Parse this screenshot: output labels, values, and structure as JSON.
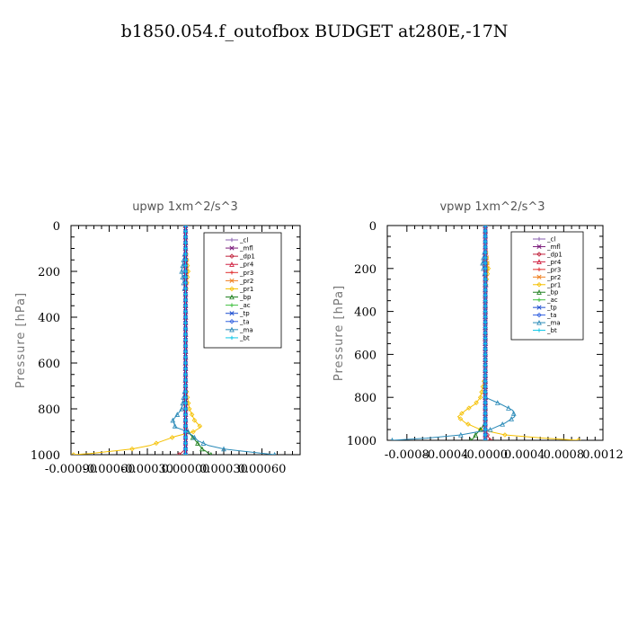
{
  "figure": {
    "title": "b1850.054.f_outofbox  BUDGET at280E,-17N"
  },
  "chart_data": [
    {
      "type": "line",
      "title": "upwp   1xm^2/s^3",
      "ylabel": "Pressure  [hPa]",
      "xlabel": "",
      "xlim": [
        -0.0009,
        0.0009
      ],
      "ylim": [
        1000,
        0
      ],
      "y_ticks": [
        0,
        200,
        400,
        600,
        800,
        1000
      ],
      "x_ticks": [
        -0.0009,
        -0.0006,
        -0.0003,
        0.0,
        0.0003,
        0.0006
      ],
      "x_tick_labels": [
        "-0.00090",
        "-0.00060",
        "-0.00030",
        "0.00000",
        "0.00030",
        "0.00060"
      ],
      "legend_position": "top-right",
      "pressure": [
        0,
        100,
        200,
        300,
        400,
        500,
        600,
        700,
        800,
        850,
        880,
        900,
        920,
        940,
        960,
        975,
        985,
        995,
        1000
      ],
      "series": [
        {
          "name": "_cl",
          "color": "#8a5fb0",
          "values": [
            0,
            0,
            0,
            0,
            0,
            0,
            0,
            0,
            0,
            0,
            0,
            0,
            0,
            0,
            0,
            0,
            0,
            0,
            0
          ]
        },
        {
          "name": "_mfl",
          "color": "#7a1a7a",
          "values": [
            0,
            0,
            0,
            0,
            0,
            0,
            0,
            0,
            0,
            0,
            0,
            0,
            0,
            0,
            0,
            0,
            0,
            0,
            0
          ]
        },
        {
          "name": "_dp1",
          "color": "#c0203a",
          "values": [
            0,
            0,
            0,
            0,
            0,
            0,
            0,
            0,
            0,
            0,
            0,
            0,
            0,
            0,
            0,
            0,
            -2e-05,
            -4e-05,
            -5e-05
          ]
        },
        {
          "name": "_pr4",
          "color": "#d02040",
          "values": [
            0,
            0,
            0,
            0,
            0,
            0,
            0,
            0,
            0,
            0,
            0,
            0,
            0,
            0,
            0,
            0,
            0,
            0,
            0
          ]
        },
        {
          "name": "_pr3",
          "color": "#e03030",
          "values": [
            0,
            0,
            0,
            0,
            0,
            0,
            0,
            0,
            0,
            0,
            0,
            0,
            0,
            0,
            0,
            0,
            0,
            0,
            0
          ]
        },
        {
          "name": "_pr2",
          "color": "#f08020",
          "values": [
            0,
            0,
            1e-05,
            0,
            0,
            0,
            0,
            0,
            0,
            0,
            0,
            0,
            0,
            0,
            0,
            0,
            0,
            0,
            0
          ]
        },
        {
          "name": "_pr1",
          "color": "#f5c000",
          "values": [
            0,
            0,
            2e-05,
            0,
            0,
            0,
            0,
            0,
            3e-05,
            7e-05,
            0.00012,
            6e-05,
            -8e-05,
            -0.00018,
            -0.00028,
            -0.00042,
            -0.00058,
            -0.00075,
            -0.00088
          ]
        },
        {
          "name": "_bp",
          "color": "#208020",
          "values": [
            0,
            0,
            0,
            0,
            0,
            0,
            0,
            0,
            0,
            0,
            0,
            2e-05,
            5e-05,
            8e-05,
            0.00011,
            0.00013,
            0.00016,
            0.00018,
            0.0002
          ]
        },
        {
          "name": "_ac",
          "color": "#40c040",
          "values": [
            0,
            0,
            0,
            0,
            0,
            0,
            0,
            0,
            0,
            0,
            0,
            0,
            0,
            0,
            0,
            0,
            0,
            0,
            0
          ]
        },
        {
          "name": "_tp",
          "color": "#2050d0",
          "values": [
            0,
            0,
            0,
            0,
            0,
            0,
            0,
            0,
            0,
            0,
            0,
            0,
            0,
            0,
            0,
            0,
            0,
            0,
            0
          ]
        },
        {
          "name": "_ta",
          "color": "#3060e0",
          "values": [
            0,
            0,
            0,
            0,
            0,
            0,
            0,
            0,
            0,
            0,
            0,
            0,
            0,
            0,
            0,
            0,
            0,
            0,
            0
          ]
        },
        {
          "name": "_ma",
          "color": "#2a8ab8",
          "values": [
            0,
            0,
            -3e-05,
            0,
            0,
            0,
            0,
            0,
            -3e-05,
            -0.0001,
            -8e-05,
            2e-05,
            6e-05,
            0.0001,
            0.00018,
            0.0003,
            0.00045,
            0.00062,
            0.0007
          ]
        },
        {
          "name": "_bt",
          "color": "#10c8e8",
          "values": [
            0,
            0,
            0,
            0,
            0,
            0,
            0,
            0,
            0,
            0,
            0,
            0,
            0,
            0,
            0,
            0,
            0,
            0,
            0
          ]
        }
      ]
    },
    {
      "type": "line",
      "title": "vpwp   1xm^2/s^3",
      "ylabel": "Pressure  [hPa]",
      "xlabel": "",
      "xlim": [
        -0.001,
        0.0012
      ],
      "ylim": [
        1000,
        0
      ],
      "y_ticks": [
        0,
        200,
        400,
        600,
        800,
        1000
      ],
      "x_ticks": [
        -0.0008,
        -0.0004,
        0.0,
        0.0004,
        0.0008,
        0.0012
      ],
      "x_tick_labels": [
        "-0.0008",
        "-0.0004",
        "-0.0000",
        "0.0004",
        "0.0008",
        "0.0012"
      ],
      "legend_position": "top-right",
      "pressure": [
        0,
        100,
        180,
        200,
        260,
        300,
        400,
        500,
        600,
        700,
        800,
        830,
        860,
        890,
        920,
        950,
        975,
        990,
        1000
      ],
      "series": [
        {
          "name": "_cl",
          "color": "#8a5fb0",
          "values": [
            0,
            0,
            0,
            0,
            0,
            0,
            0,
            0,
            0,
            0,
            0,
            0,
            0,
            0,
            0,
            0,
            0,
            0,
            0
          ]
        },
        {
          "name": "_mfl",
          "color": "#7a1a7a",
          "values": [
            0,
            0,
            0,
            0,
            0,
            0,
            0,
            0,
            0,
            0,
            0,
            0,
            0,
            0,
            0,
            0,
            0,
            0,
            0
          ]
        },
        {
          "name": "_dp1",
          "color": "#c0203a",
          "values": [
            0,
            0,
            0,
            0,
            0,
            0,
            0,
            0,
            0,
            0,
            0,
            0,
            0,
            0,
            0,
            0,
            2e-05,
            4e-05,
            5e-05
          ]
        },
        {
          "name": "_pr4",
          "color": "#d02040",
          "values": [
            0,
            0,
            0,
            0,
            0,
            0,
            0,
            0,
            0,
            0,
            0,
            0,
            0,
            0,
            0,
            0,
            0,
            0,
            0
          ]
        },
        {
          "name": "_pr3",
          "color": "#e03030",
          "values": [
            0,
            0,
            0,
            0,
            0,
            0,
            0,
            0,
            0,
            0,
            0,
            0,
            0,
            0,
            0,
            0,
            0,
            0,
            0
          ]
        },
        {
          "name": "_pr2",
          "color": "#f08020",
          "values": [
            0,
            0,
            2e-05,
            2e-05,
            0,
            0,
            0,
            0,
            0,
            0,
            0,
            0,
            0,
            0,
            0,
            0,
            0,
            0,
            0
          ]
        },
        {
          "name": "_pr1",
          "color": "#f5c000",
          "values": [
            0,
            0,
            2e-05,
            3e-05,
            1e-05,
            0,
            0,
            0,
            0,
            0,
            -5e-05,
            -0.0001,
            -0.0002,
            -0.00028,
            -0.0002,
            -5e-05,
            0.0002,
            0.0006,
            0.00095
          ]
        },
        {
          "name": "_bp",
          "color": "#208020",
          "values": [
            0,
            0,
            0,
            0,
            0,
            0,
            0,
            0,
            0,
            0,
            0,
            0,
            0,
            0,
            0,
            -5e-05,
            -0.0001,
            -0.00012,
            -0.00015
          ]
        },
        {
          "name": "_ac",
          "color": "#40c040",
          "values": [
            0,
            0,
            0,
            0,
            0,
            0,
            0,
            0,
            0,
            0,
            0,
            0,
            0,
            0,
            0,
            0,
            0,
            0,
            0
          ]
        },
        {
          "name": "_tp",
          "color": "#2050d0",
          "values": [
            0,
            0,
            0,
            0,
            0,
            0,
            0,
            0,
            0,
            0,
            0,
            0,
            0,
            0,
            0,
            0,
            0,
            0,
            0
          ]
        },
        {
          "name": "_ta",
          "color": "#3060e0",
          "values": [
            0,
            0,
            0,
            0,
            0,
            0,
            0,
            0,
            0,
            0,
            0,
            0,
            0,
            0,
            0,
            0,
            0,
            0,
            0
          ]
        },
        {
          "name": "_ma",
          "color": "#2a8ab8",
          "values": [
            0,
            0,
            -3e-05,
            -2e-05,
            1e-05,
            0,
            0,
            0,
            0,
            0,
            0,
            0.00015,
            0.00028,
            0.0003,
            0.0002,
            5e-05,
            -0.00025,
            -0.0006,
            -0.00095
          ]
        },
        {
          "name": "_bt",
          "color": "#10c8e8",
          "values": [
            0,
            0,
            0,
            0,
            0,
            0,
            0,
            0,
            0,
            0,
            0,
            0,
            0,
            0,
            0,
            0,
            0,
            0,
            0
          ]
        }
      ]
    }
  ]
}
